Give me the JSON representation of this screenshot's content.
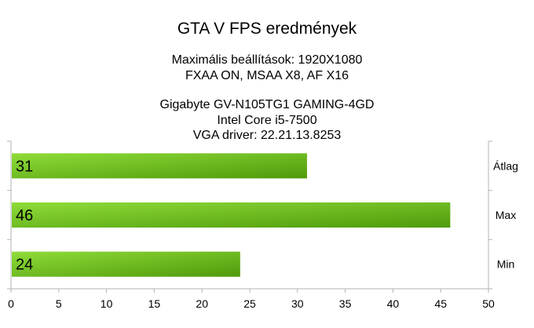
{
  "chart_data": {
    "type": "bar",
    "orientation": "horizontal",
    "title": "GTA V FPS eredmények",
    "subtitle_lines": [
      "Maximális beállítások: 1920X1080",
      "FXAA ON, MSAA X8, AF X16",
      "",
      "Gigabyte GV-N105TG1 GAMING-4GD",
      "Intel Core i5-7500",
      "VGA driver: 22.21.13.8253"
    ],
    "categories": [
      "Átlag",
      "Max",
      "Min"
    ],
    "values": [
      31,
      46,
      24
    ],
    "data_labels": [
      "31",
      "46",
      "24"
    ],
    "xlim": [
      0,
      50
    ],
    "x_ticks": [
      "0",
      "5",
      "10",
      "15",
      "20",
      "25",
      "30",
      "35",
      "40",
      "45",
      "50"
    ],
    "grid": false,
    "legend": "none",
    "colors": {
      "bar_light": "#8fdc3a",
      "bar_dark": "#4f9a0a",
      "axis": "#b3b3b3"
    }
  }
}
